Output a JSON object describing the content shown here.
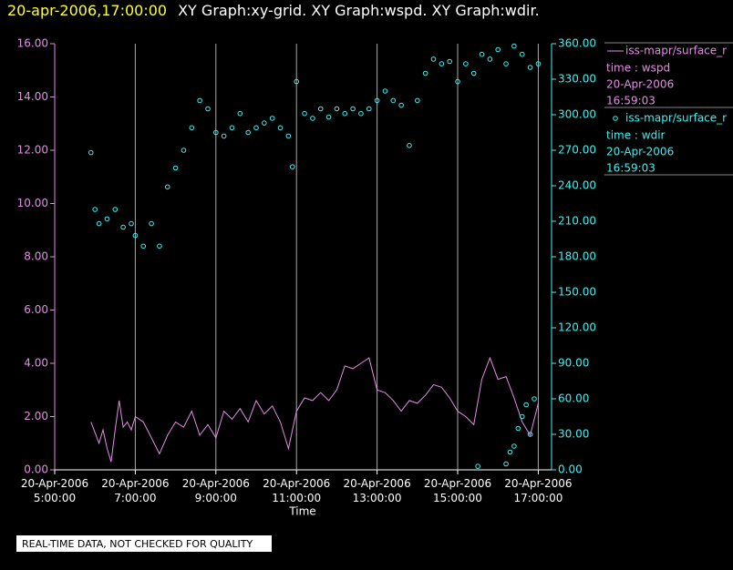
{
  "chart_data": {
    "type": "dual-axis-xy",
    "title_time": "20-apr-2006,17:00:00",
    "title": "XY Graph:xy-grid.  XY Graph:wspd.  XY Graph:wdir.",
    "xlabel": "Time",
    "note": "REAL-TIME DATA, NOT CHECKED FOR QUALITY",
    "xlim": [
      5,
      17.33
    ],
    "xticks": [
      {
        "value": 5,
        "label": [
          "20-Apr-2006",
          "5:00:00"
        ]
      },
      {
        "value": 7,
        "label": [
          "20-Apr-2006",
          "7:00:00"
        ]
      },
      {
        "value": 9,
        "label": [
          "20-Apr-2006",
          "9:00:00"
        ]
      },
      {
        "value": 11,
        "label": [
          "20-Apr-2006",
          "11:00:00"
        ]
      },
      {
        "value": 13,
        "label": [
          "20-Apr-2006",
          "13:00:00"
        ]
      },
      {
        "value": 15,
        "label": [
          "20-Apr-2006",
          "15:00:00"
        ]
      },
      {
        "value": 17,
        "label": [
          "20-Apr-2006",
          "17:00:00"
        ]
      }
    ],
    "ylim": [
      0,
      16
    ],
    "yticks": [
      {
        "value": 0,
        "label": "0.00"
      },
      {
        "value": 2,
        "label": "2.00"
      },
      {
        "value": 4,
        "label": "4.00"
      },
      {
        "value": 6,
        "label": "6.00"
      },
      {
        "value": 8,
        "label": "8.00"
      },
      {
        "value": 10,
        "label": "10.00"
      },
      {
        "value": 12,
        "label": "12.00"
      },
      {
        "value": 14,
        "label": "14.00"
      },
      {
        "value": 16,
        "label": "16.00"
      }
    ],
    "y2lim": [
      0,
      360
    ],
    "y2ticks": [
      {
        "value": 0,
        "label": "0.00"
      },
      {
        "value": 30,
        "label": "30.00"
      },
      {
        "value": 60,
        "label": "60.00"
      },
      {
        "value": 90,
        "label": "90.00"
      },
      {
        "value": 120,
        "label": "120.00"
      },
      {
        "value": 150,
        "label": "150.00"
      },
      {
        "value": 180,
        "label": "180.00"
      },
      {
        "value": 210,
        "label": "210.00"
      },
      {
        "value": 240,
        "label": "240.00"
      },
      {
        "value": 270,
        "label": "270.00"
      },
      {
        "value": 300,
        "label": "300.00"
      },
      {
        "value": 330,
        "label": "330.00"
      },
      {
        "value": 360,
        "label": "360.00"
      }
    ],
    "grid": true,
    "series": [
      {
        "name": "iss-mapr/surface_r",
        "legend_text": [
          "time : wspd",
          "20-Apr-2006",
          "16:59:03"
        ],
        "style": "line",
        "axis": "y",
        "color": "#e58ce5",
        "x": [
          5.9,
          6.0,
          6.1,
          6.2,
          6.3,
          6.4,
          6.5,
          6.6,
          6.7,
          6.8,
          6.9,
          7.0,
          7.2,
          7.4,
          7.6,
          7.8,
          8.0,
          8.2,
          8.4,
          8.6,
          8.8,
          9.0,
          9.2,
          9.4,
          9.6,
          9.8,
          10.0,
          10.2,
          10.4,
          10.6,
          10.8,
          10.9,
          11.0,
          11.2,
          11.4,
          11.6,
          11.8,
          12.0,
          12.2,
          12.4,
          12.6,
          12.8,
          13.0,
          13.2,
          13.4,
          13.6,
          13.8,
          14.0,
          14.2,
          14.4,
          14.6,
          14.8,
          15.0,
          15.2,
          15.4,
          15.6,
          15.8,
          16.0,
          16.2,
          16.4,
          16.6,
          16.8,
          17.0
        ],
        "values": [
          1.8,
          1.4,
          1.0,
          1.5,
          0.8,
          0.3,
          1.5,
          2.6,
          1.6,
          1.8,
          1.5,
          2.0,
          1.8,
          1.2,
          0.6,
          1.3,
          1.8,
          1.6,
          2.2,
          1.3,
          1.7,
          1.2,
          2.2,
          1.9,
          2.3,
          1.8,
          2.6,
          2.1,
          2.4,
          1.8,
          0.8,
          1.5,
          2.2,
          2.7,
          2.6,
          2.9,
          2.6,
          3.0,
          3.9,
          3.8,
          4.0,
          4.2,
          3.0,
          2.9,
          2.6,
          2.2,
          2.6,
          2.5,
          2.8,
          3.2,
          3.1,
          2.7,
          2.2,
          2.0,
          1.7,
          3.4,
          4.2,
          3.4,
          3.5,
          2.7,
          1.8,
          1.3,
          2.5
        ]
      },
      {
        "name": "iss-mapr/surface_r",
        "legend_text": [
          "time : wdir",
          "20-Apr-2006",
          "16:59:03"
        ],
        "style": "points",
        "axis": "y2",
        "color": "#3ff0f0",
        "x": [
          5.9,
          6.0,
          6.1,
          6.3,
          6.5,
          6.7,
          6.9,
          7.0,
          7.2,
          7.4,
          7.6,
          7.8,
          8.0,
          8.2,
          8.4,
          8.6,
          8.8,
          9.0,
          9.2,
          9.4,
          9.6,
          9.8,
          10.0,
          10.2,
          10.4,
          10.6,
          10.8,
          10.9,
          11.0,
          11.2,
          11.4,
          11.6,
          11.8,
          12.0,
          12.2,
          12.4,
          12.6,
          12.8,
          13.0,
          13.2,
          13.4,
          13.6,
          13.8,
          14.0,
          14.2,
          14.4,
          14.6,
          14.8,
          15.0,
          15.2,
          15.4,
          15.5,
          15.6,
          15.8,
          16.0,
          16.2,
          16.2,
          16.3,
          16.4,
          16.4,
          16.5,
          16.6,
          16.6,
          16.7,
          16.8,
          16.8,
          16.9,
          17.0
        ],
        "values": [
          268,
          220,
          208,
          212,
          220,
          205,
          208,
          198,
          189,
          208,
          189,
          239,
          255,
          270,
          289,
          312,
          305,
          285,
          282,
          289,
          301,
          285,
          289,
          293,
          297,
          289,
          282,
          256,
          328,
          301,
          297,
          305,
          298,
          305,
          301,
          305,
          301,
          305,
          312,
          320,
          312,
          308,
          274,
          312,
          335,
          347,
          343,
          345,
          328,
          343,
          335,
          3,
          351,
          347,
          355,
          343,
          5,
          15,
          358,
          20,
          35,
          351,
          45,
          55,
          340,
          30,
          60,
          343
        ]
      }
    ]
  }
}
